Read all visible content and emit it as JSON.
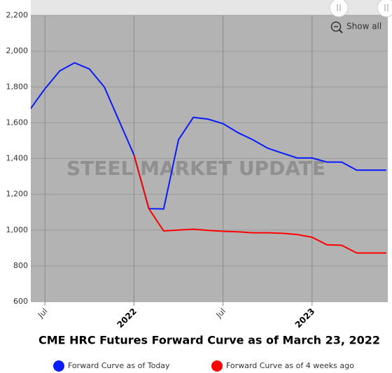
{
  "chart_data": {
    "type": "line",
    "title": "CME HRC Futures Forward Curve as of March 23, 2022",
    "watermark": "STEEL MARKET UPDATE",
    "button": "Show all",
    "categories": [
      null,
      "Jul",
      null,
      null,
      null,
      null,
      null,
      "2022",
      null,
      null,
      null,
      null,
      null,
      "Jul",
      null,
      null,
      null,
      null,
      null,
      "2023",
      null,
      null,
      null,
      null,
      null
    ],
    "series": [
      {
        "name": "Forward Curve as of Today",
        "color": "#0a1cff",
        "values": [
          1675,
          1790,
          1890,
          1935,
          1900,
          1800,
          1610,
          1420,
          1120,
          1118,
          1505,
          1630,
          1620,
          1595,
          1545,
          1505,
          1458,
          1430,
          1403,
          1403,
          1380,
          1380,
          1335,
          1335,
          1335
        ]
      },
      {
        "name": "Forward Curve as of 4 weeks ago",
        "color": "#ff0000",
        "values": [
          null,
          null,
          null,
          null,
          null,
          null,
          null,
          1420,
          1120,
          995,
          1000,
          1005,
          998,
          993,
          990,
          985,
          985,
          982,
          975,
          960,
          918,
          915,
          872,
          872,
          872
        ]
      }
    ],
    "ylim": [
      600,
      2200
    ],
    "yticks": [
      {
        "value": 600,
        "label": "600"
      },
      {
        "value": 800,
        "label": "800"
      },
      {
        "value": 1000,
        "label": "1,000"
      },
      {
        "value": 1200,
        "label": "1,200"
      },
      {
        "value": 1400,
        "label": "1,400"
      },
      {
        "value": 1600,
        "label": "1,600"
      },
      {
        "value": 1800,
        "label": "1,800"
      },
      {
        "value": 2000,
        "label": "2,000"
      },
      {
        "value": 2200,
        "label": "2,200"
      }
    ],
    "grid": true
  }
}
